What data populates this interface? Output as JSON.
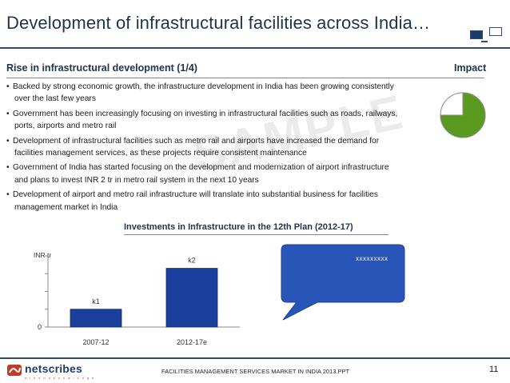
{
  "header": {
    "title": "Development of infrastructural facilities across India…",
    "icon": "computer-monitors-icon"
  },
  "section": {
    "left_heading": "Rise in infrastructural development (1/4)",
    "right_heading": "Impact"
  },
  "watermark": "SAMPLE",
  "bullets": [
    "Backed by strong economic growth, the infrastructure development in India has been growing consistently over the last few years",
    "Government has been increasingly focusing on investing in infrastructural facilities such as roads, railways, ports, airports and metro rail",
    "Development of infrastructural facilities such as metro rail and airports have increased the demand for facilities management services, as these projects require consistent maintenance",
    "Government of India  has started focusing on the development and modernization of airport infrastructure and plans to invest INR 2 tr in metro rail system in the next 10 years",
    "Development of airport and metro rail infrastructure will translate into substantial business for facilities management market in India"
  ],
  "impact": {
    "level": 0.75,
    "fill_color": "#5a9a1e",
    "empty_color": "#ffffff"
  },
  "chart_heading": "Investments in Infrastructure in the 12th Plan (2012-17)",
  "chart_data": {
    "type": "bar",
    "title": "",
    "ylabel": "INR tr",
    "xlabel": "",
    "categories": [
      "2007-12",
      "2012-17e"
    ],
    "data_labels": [
      "k1",
      "k2"
    ],
    "values": [
      1,
      3.3
    ],
    "ylim": [
      0,
      4
    ],
    "y_tick_labels": [
      "0"
    ],
    "bar_color": "#1a3f9c",
    "grid": false,
    "legend": "none"
  },
  "callout": {
    "text": "xxxxxxxxx",
    "fill_color": "#2a55b8"
  },
  "footer": {
    "logo_text": "netscribes",
    "logo_tagline": "a t h e n a   k n o w l e d g e",
    "report_title": "FACILITIES MANAGEMENT SERVICES MARKET IN INDIA 2013.PPT",
    "page_number": "11"
  }
}
